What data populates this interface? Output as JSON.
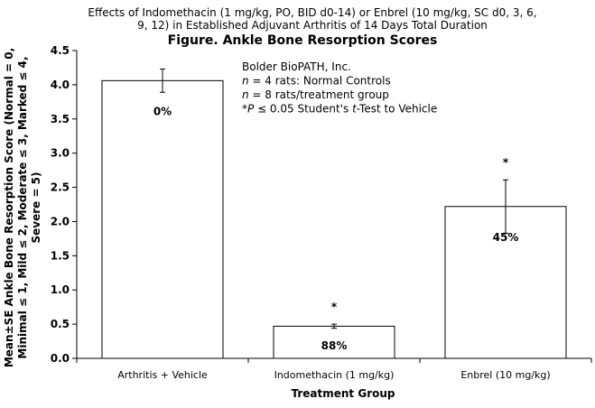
{
  "chart_data": {
    "type": "bar",
    "subtitle_lines": [
      "Effects of Indomethacin (1 mg/kg, PO, BID d0-14) or Enbrel (10 mg/kg, SC d0, 3, 6,",
      "9, 12) in Established Adjuvant Arthritis of 14 Days Total Duration"
    ],
    "title": "Figure. Ankle Bone Resorption Scores",
    "xlabel": "Treatment Group",
    "ylabel_lines": [
      "Mean±SE Ankle Bone Resorption Score (Normal = 0,",
      "Minimal ≤ 1, Mild ≤ 2, Moderate ≤ 3, Marked ≤ 4,",
      "Severe = 5)"
    ],
    "ylim": [
      0,
      4.5
    ],
    "yticks": [
      "0.0",
      "0.5",
      "1.0",
      "1.5",
      "2.0",
      "2.5",
      "3.0",
      "3.5",
      "4.0",
      "4.5"
    ],
    "grid": false,
    "categories": [
      "Arthritis + Vehicle",
      "Indomethacin (1 mg/kg)",
      "Enbrel (10 mg/kg)"
    ],
    "values": [
      4.06,
      0.47,
      2.22
    ],
    "errors": [
      0.17,
      0.03,
      0.39
    ],
    "bar_labels": [
      "0%",
      "88%",
      "45%"
    ],
    "significance": [
      "",
      "*",
      "*"
    ],
    "annotations": [
      {
        "runs": [
          {
            "t": "Bolder BioPATH, Inc.",
            "i": false
          }
        ]
      },
      {
        "runs": [
          {
            "t": "n",
            "i": true
          },
          {
            "t": " = 4 rats: Normal Controls",
            "i": false
          }
        ]
      },
      {
        "runs": [
          {
            "t": "n",
            "i": true
          },
          {
            "t": " = 8 rats/treatment group",
            "i": false
          }
        ]
      },
      {
        "runs": [
          {
            "t": "*P",
            "i": true
          },
          {
            "t": " ≤ 0.05 Student's ",
            "i": false
          },
          {
            "t": "t",
            "i": true
          },
          {
            "t": "-Test to Vehicle",
            "i": false
          }
        ]
      }
    ],
    "colors": {
      "bar_fill": "#ffffff",
      "bar_stroke": "#000000",
      "axis": "#000000"
    }
  }
}
